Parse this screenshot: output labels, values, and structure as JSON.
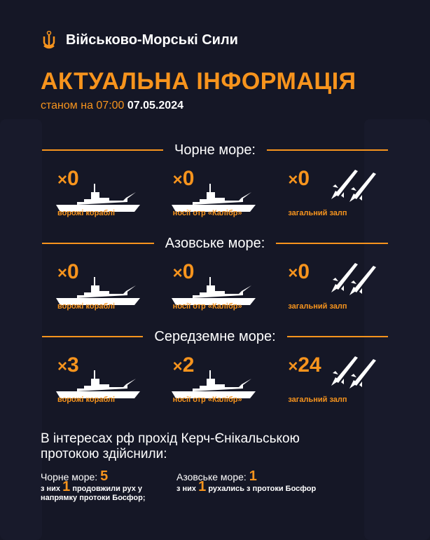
{
  "header": {
    "org": "Військово-Морські Сили",
    "title": "АКТУАЛЬНА ІНФОРМАЦІЯ",
    "as_of_prefix": "станом на 07:00",
    "date": "07.05.2024"
  },
  "colors": {
    "accent": "#f7941d",
    "background": "#151726"
  },
  "sections": [
    {
      "title": "Чорне море:",
      "items": [
        {
          "count": "0",
          "label": "ворожі кораблі",
          "icon": "ship-icon"
        },
        {
          "count": "0",
          "label": "носії отр «Калібр»",
          "icon": "ship-icon"
        },
        {
          "count": "0",
          "label": "загальний залп",
          "icon": "missile-icon"
        }
      ]
    },
    {
      "title": "Азовське море:",
      "items": [
        {
          "count": "0",
          "label": "ворожі кораблі",
          "icon": "ship-icon"
        },
        {
          "count": "0",
          "label": "носії отр «Калібр»",
          "icon": "ship-icon"
        },
        {
          "count": "0",
          "label": "загальний залп",
          "icon": "missile-icon"
        }
      ]
    },
    {
      "title": "Середземне море:",
      "items": [
        {
          "count": "3",
          "label": "ворожі кораблі",
          "icon": "ship-icon"
        },
        {
          "count": "2",
          "label": "носії отр «Калібр»",
          "icon": "ship-icon"
        },
        {
          "count": "24",
          "label": "загальний залп",
          "icon": "missile-icon"
        }
      ]
    }
  ],
  "kerch": {
    "text": "В інтересах рф прохід Керч-Єнікальською протокою здійснили:",
    "black": {
      "label": "Чорне море:",
      "value": "5",
      "note_prefix": "з них",
      "note_value": "1",
      "note_suffix": "продовжили рух у напрямку протоки Босфор;"
    },
    "azov": {
      "label": "Азовське море:",
      "value": "1",
      "note_prefix": "з них",
      "note_value": "1",
      "note_suffix": "рухались з протоки Босфор"
    }
  }
}
